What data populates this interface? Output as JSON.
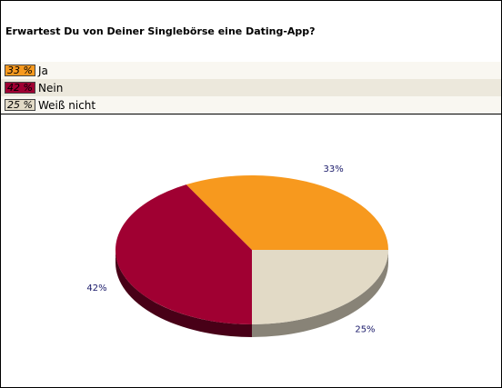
{
  "title": "Erwartest Du von Deiner Singlebörse eine Dating-App?",
  "colors": {
    "ja": "#f7991e",
    "nein": "#a00032",
    "weiss_nicht": "#e2dac6"
  },
  "legend": [
    {
      "percent_text": "33 %",
      "label": "Ja"
    },
    {
      "percent_text": "42 %",
      "label": "Nein"
    },
    {
      "percent_text": "25 %",
      "label": "Weiß nicht"
    }
  ],
  "chart_data": {
    "type": "pie",
    "title": "Erwartest Du von Deiner Singlebörse eine Dating-App?",
    "categories": [
      "Ja",
      "Nein",
      "Weiß nicht"
    ],
    "values": [
      33,
      42,
      25
    ],
    "unit": "%",
    "data_labels": [
      "33%",
      "42%",
      "25%"
    ]
  }
}
